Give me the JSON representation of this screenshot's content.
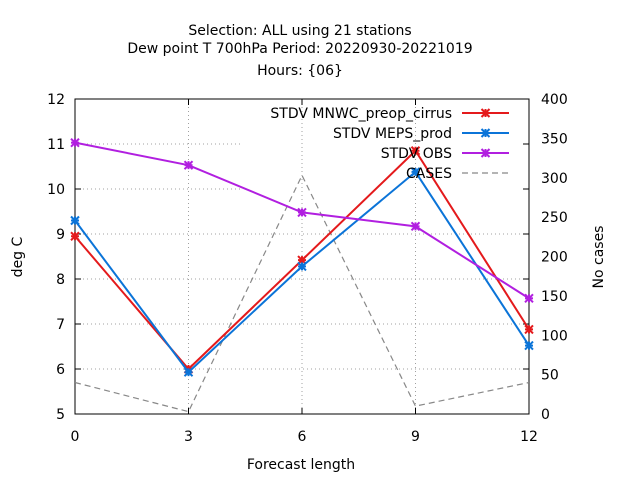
{
  "chart_data": {
    "type": "line",
    "title_lines": [
      "Selection: ALL using    21 stations",
      "Dew point T 700hPa   Period: 20220930-20221019",
      "Hours: {06}"
    ],
    "xlabel": "Forecast length",
    "ylabel": "deg C",
    "y2label": "No cases",
    "x": [
      0,
      3,
      6,
      9,
      12
    ],
    "xlim": [
      0,
      12
    ],
    "ylim": [
      5,
      12
    ],
    "y2lim": [
      0,
      400
    ],
    "xticks": [
      "0",
      "3",
      "6",
      "9",
      "12"
    ],
    "yticks": [
      "5",
      "6",
      "7",
      "8",
      "9",
      "10",
      "11",
      "12"
    ],
    "y2ticks": [
      "0",
      "50",
      "100",
      "150",
      "200",
      "250",
      "300",
      "350",
      "400"
    ],
    "grid": true,
    "legend_position": "top-right",
    "series": [
      {
        "name": "STDV MNWC_preop_cirrus",
        "axis": "y",
        "color": "#e41a1c",
        "marker": "x",
        "values": [
          8.95,
          6.0,
          8.42,
          10.85,
          6.88
        ]
      },
      {
        "name": "STDV MEPS_prod",
        "axis": "y",
        "color": "#0b74d8",
        "marker": "x",
        "values": [
          9.3,
          5.93,
          8.28,
          10.38,
          6.52
        ]
      },
      {
        "name": "STDV OBS",
        "axis": "y",
        "color": "#b11fe0",
        "marker": "x",
        "values": [
          11.03,
          10.53,
          9.48,
          9.17,
          7.57
        ]
      },
      {
        "name": "CASES",
        "axis": "y2",
        "color": "#888888",
        "marker": "none",
        "dashed": true,
        "values": [
          40,
          3,
          303,
          10,
          40
        ]
      }
    ]
  }
}
